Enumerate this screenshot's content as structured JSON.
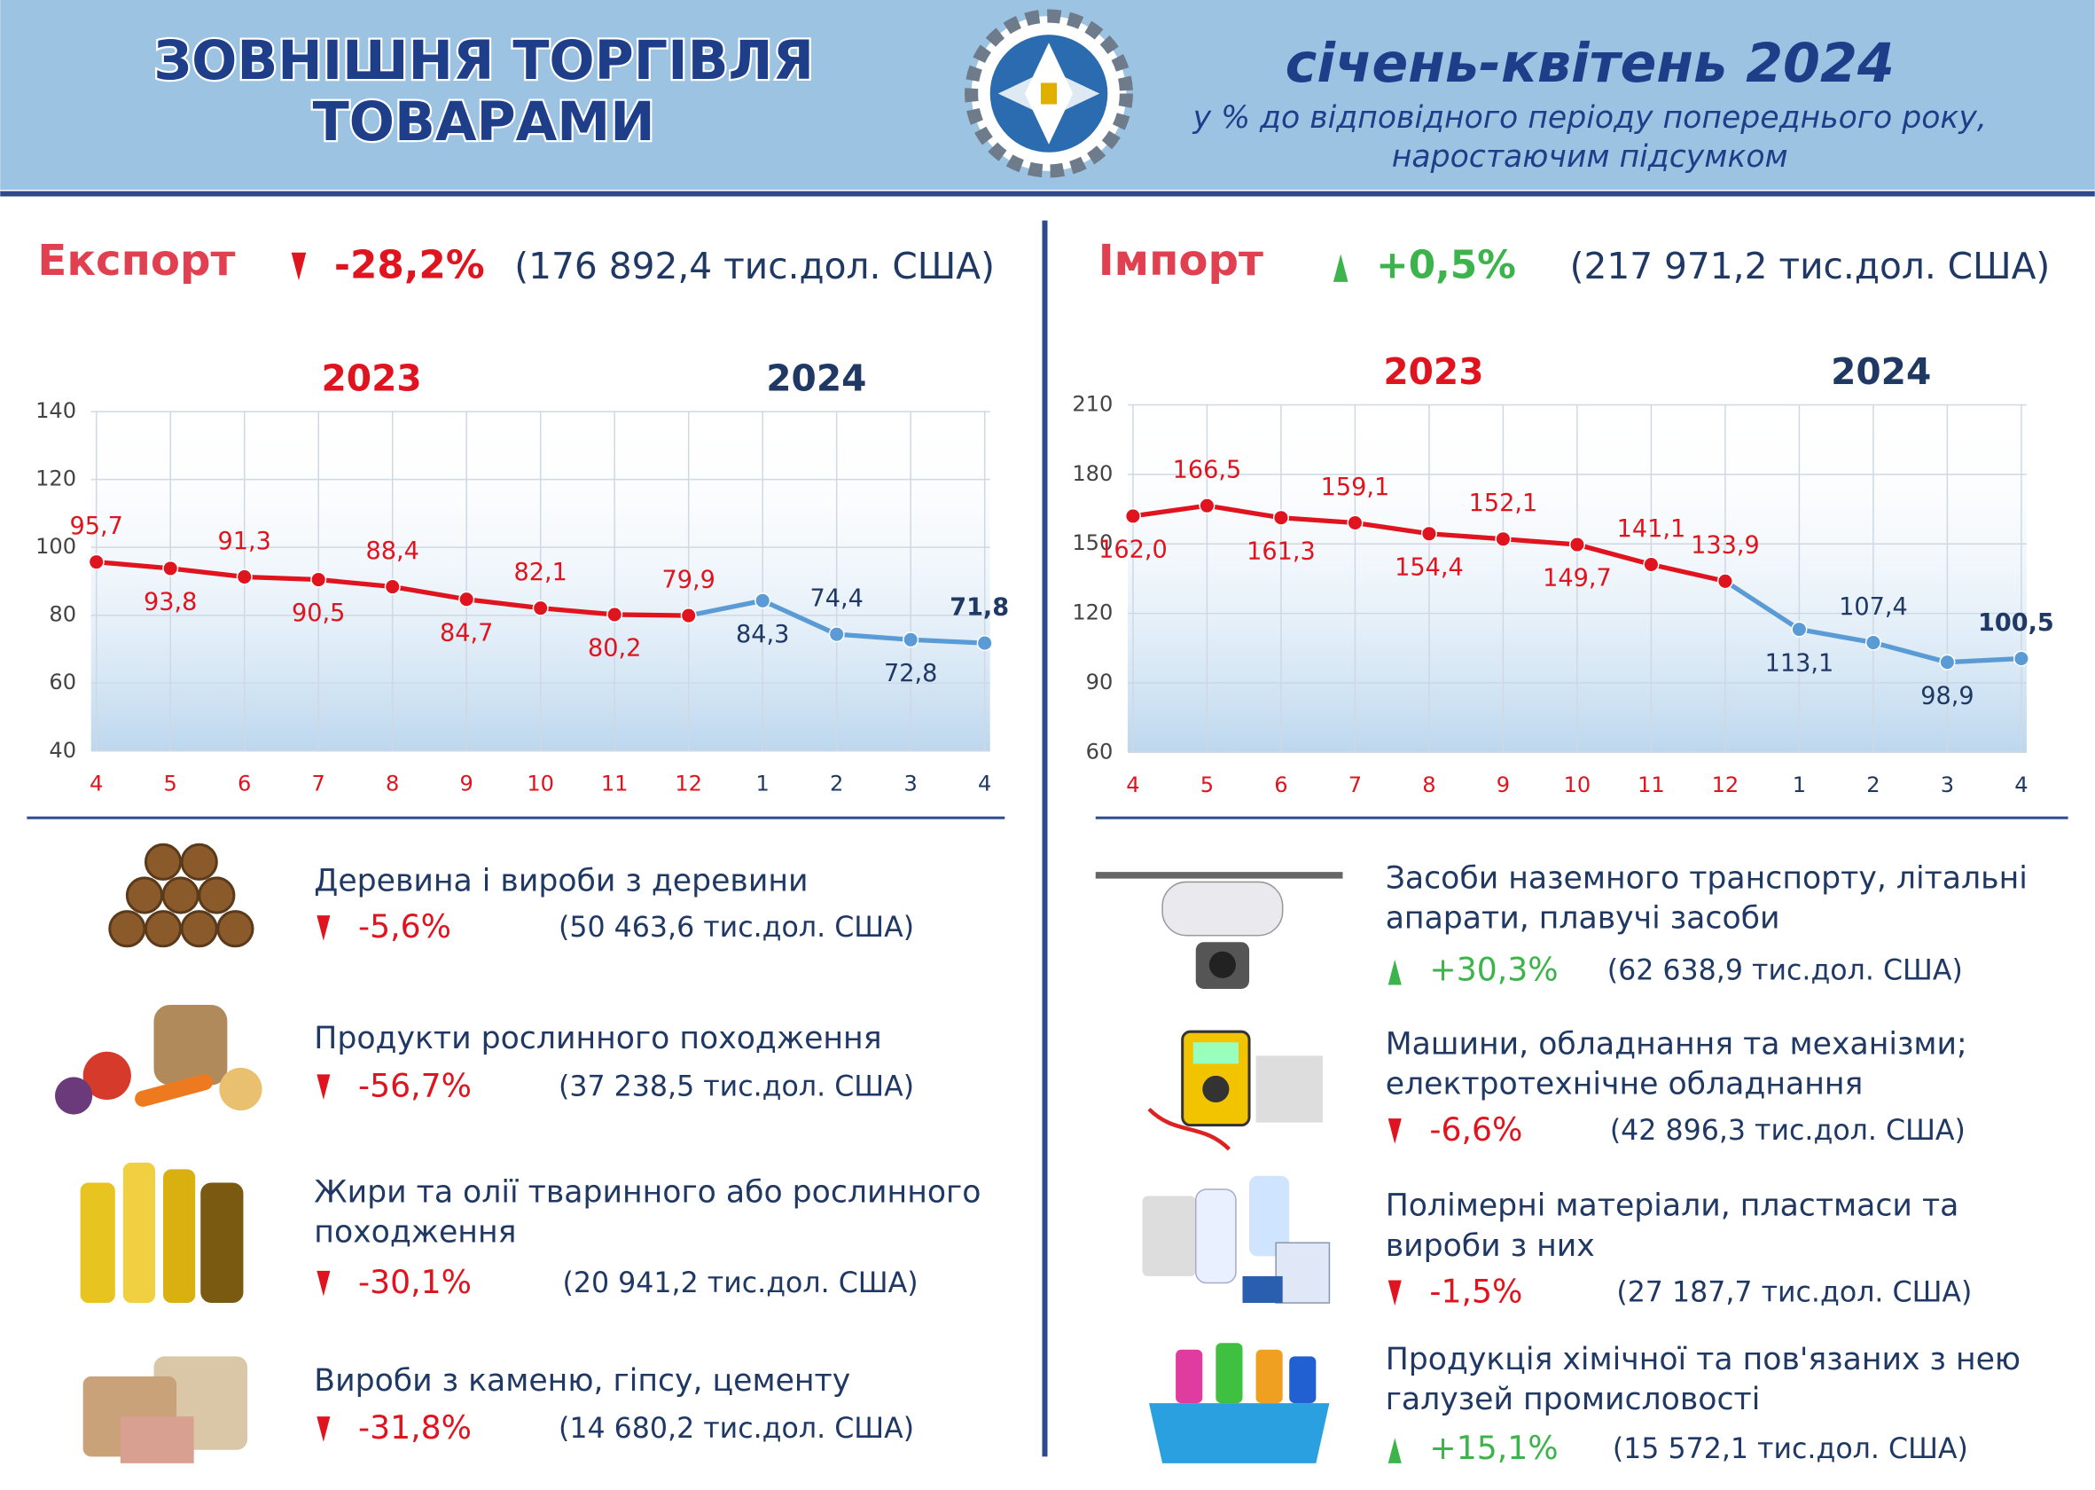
{
  "header": {
    "title": [
      "ЗОВНІШНЯ ТОРГІВЛЯ",
      "ТОВАРАМИ"
    ],
    "period": "січень-квітень 2024",
    "subtitle": [
      "у % до відповідного періоду попереднього року,",
      "наростаючим підсумком"
    ]
  },
  "export": {
    "label": "Експорт",
    "change": "-28,2%",
    "direction": "down",
    "total": "(176 892,4 тис.дол. США)",
    "items": [
      {
        "name": [
          "Деревина і вироби з деревини"
        ],
        "change": "-5,6%",
        "direction": "down",
        "total": "(50 463,6 тис.дол. США)"
      },
      {
        "name": [
          "Продукти рослинного походження"
        ],
        "change": "-56,7%",
        "direction": "down",
        "total": "(37 238,5 тис.дол. США)"
      },
      {
        "name": [
          "Жири та олії тваринного або рослинного",
          "походження"
        ],
        "change": "-30,1%",
        "direction": "down",
        "total": "(20 941,2 тис.дол. США)"
      },
      {
        "name": [
          "Вироби з каменю, гіпсу, цементу"
        ],
        "change": "-31,8%",
        "direction": "down",
        "total": "(14 680,2 тис.дол. США)"
      }
    ]
  },
  "import": {
    "label": "Імпорт",
    "change": "+0,5%",
    "direction": "up",
    "total": "(217 971,2 тис.дол. США)",
    "items": [
      {
        "name": [
          "Засоби наземного транспорту, літальні",
          "апарати, плавучі засоби"
        ],
        "change": "+30,3%",
        "direction": "up",
        "total": "(62 638,9 тис.дол. США)"
      },
      {
        "name": [
          "Машини, обладнання та механізми;",
          "електротехнічне обладнання"
        ],
        "change": "-6,6%",
        "direction": "down",
        "total": "(42 896,3 тис.дол. США)"
      },
      {
        "name": [
          "Полімерні матеріали, пластмаси та",
          "вироби з них"
        ],
        "change": "-1,5%",
        "direction": "down",
        "total": "(27 187,7 тис.дол. США)"
      },
      {
        "name": [
          "Продукція хімічної та пов'язаних з нею",
          "галузей промисловості"
        ],
        "change": "+15,1%",
        "direction": "up",
        "total": "(15 572,1 тис.дол. США)"
      }
    ]
  },
  "chart_data": [
    {
      "type": "line",
      "categories": [
        "4",
        "5",
        "6",
        "7",
        "8",
        "9",
        "10",
        "11",
        "12",
        "1",
        "2",
        "3",
        "4"
      ],
      "series": [
        {
          "name": "2023",
          "color": "#e0141e",
          "values": [
            95.7,
            93.8,
            91.3,
            90.5,
            88.4,
            84.7,
            82.1,
            80.2,
            79.9,
            null,
            null,
            null,
            null
          ],
          "value_labels": [
            "95,7",
            "93,8",
            "91,3",
            "90,5",
            "88,4",
            "84,7",
            "82,1",
            "80,2",
            "79,9",
            null,
            null,
            null,
            null
          ]
        },
        {
          "name": "2024",
          "color": "#5b9bd5",
          "values": [
            null,
            null,
            null,
            null,
            null,
            null,
            null,
            null,
            null,
            84.3,
            74.4,
            72.8,
            71.8
          ],
          "value_labels": [
            null,
            null,
            null,
            null,
            null,
            null,
            null,
            null,
            null,
            "84,3",
            "74,4",
            "72,8",
            "71,8"
          ]
        }
      ],
      "ylim": [
        40,
        140
      ],
      "yticks": [
        40,
        60,
        80,
        100,
        120,
        140
      ],
      "grid": true
    },
    {
      "type": "line",
      "categories": [
        "4",
        "5",
        "6",
        "7",
        "8",
        "9",
        "10",
        "11",
        "12",
        "1",
        "2",
        "3",
        "4"
      ],
      "series": [
        {
          "name": "2023",
          "color": "#e0141e",
          "values": [
            162.0,
            166.5,
            161.3,
            159.1,
            154.4,
            152.1,
            149.7,
            141.1,
            133.9,
            null,
            null,
            null,
            null
          ],
          "value_labels": [
            "162,0",
            "166,5",
            "161,3",
            "159,1",
            "154,4",
            "152,1",
            "149,7",
            "141,1",
            "133,9",
            null,
            null,
            null,
            null
          ]
        },
        {
          "name": "2024",
          "color": "#5b9bd5",
          "values": [
            null,
            null,
            null,
            null,
            null,
            null,
            null,
            null,
            null,
            113.1,
            107.4,
            98.9,
            100.5
          ],
          "value_labels": [
            null,
            null,
            null,
            null,
            null,
            null,
            null,
            null,
            null,
            "113,1",
            "107,4",
            "98,9",
            "100,5"
          ]
        }
      ],
      "ylim": [
        60,
        210
      ],
      "yticks": [
        60,
        90,
        120,
        150,
        180,
        210
      ],
      "grid": true
    }
  ]
}
